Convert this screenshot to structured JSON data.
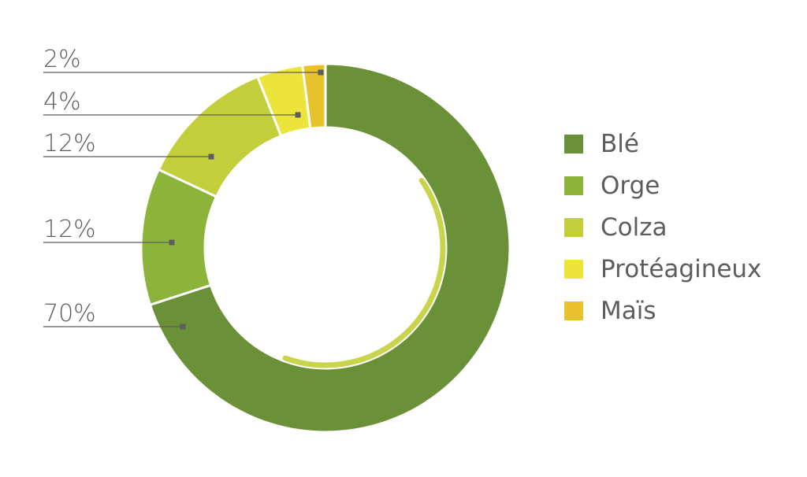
{
  "chart_data": {
    "type": "pie",
    "variant": "donut",
    "series": [
      {
        "name": "Blé",
        "value": 70,
        "label": "70%",
        "color": "#6a9138"
      },
      {
        "name": "Orge",
        "value": 12,
        "label": "12%",
        "color": "#8cb43a"
      },
      {
        "name": "Colza",
        "value": 12,
        "label": "12%",
        "color": "#c3cf3a"
      },
      {
        "name": "Protéagineux",
        "value": 4,
        "label": "4%",
        "color": "#ece43a"
      },
      {
        "name": "Maïs",
        "value": 2,
        "label": "2%",
        "color": "#e8c22c"
      }
    ],
    "legend_position": "right"
  }
}
